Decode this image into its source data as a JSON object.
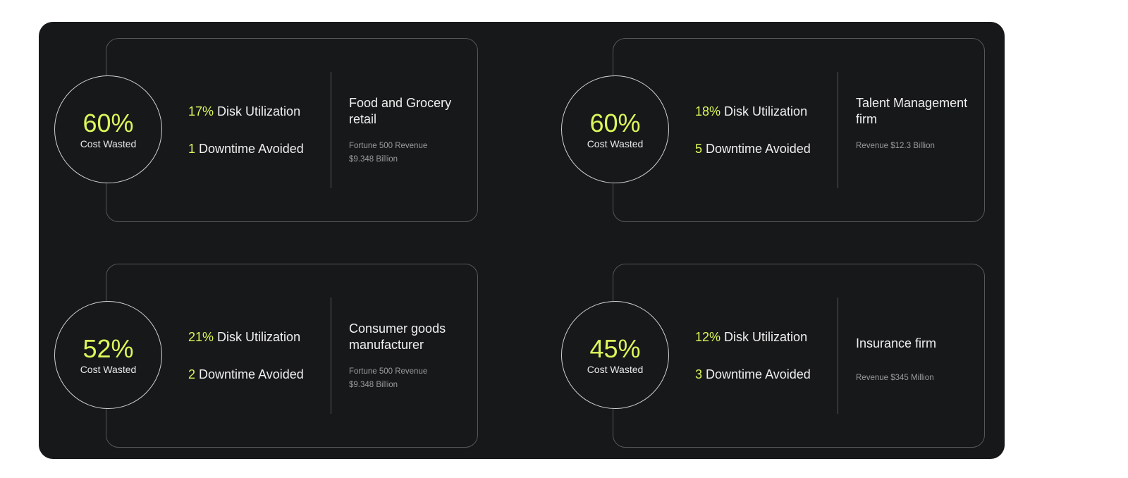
{
  "accent_color": "#dcf75a",
  "cards": [
    {
      "cost_pct": "60%",
      "cost_label": "Cost Wasted",
      "disk_value": "17%",
      "disk_label": "Disk Utilization",
      "downtime_value": "1",
      "downtime_label": "Downtime Avoided",
      "company": "Food and Grocery retail",
      "revenue_line1": "Fortune 500 Revenue",
      "revenue_line2": "$9.348 Billion"
    },
    {
      "cost_pct": "60%",
      "cost_label": "Cost Wasted",
      "disk_value": "18%",
      "disk_label": "Disk Utilization",
      "downtime_value": "5",
      "downtime_label": "Downtime Avoided",
      "company": "Talent Management firm",
      "revenue_line1": "Revenue $12.3 Billion",
      "revenue_line2": ""
    },
    {
      "cost_pct": "52%",
      "cost_label": "Cost Wasted",
      "disk_value": "21%",
      "disk_label": "Disk Utilization",
      "downtime_value": "2",
      "downtime_label": "Downtime Avoided",
      "company": "Consumer goods manufacturer",
      "revenue_line1": "Fortune 500 Revenue",
      "revenue_line2": "$9.348 Billion"
    },
    {
      "cost_pct": "45%",
      "cost_label": "Cost Wasted",
      "disk_value": "12%",
      "disk_label": "Disk Utilization",
      "downtime_value": "3",
      "downtime_label": "Downtime Avoided",
      "company": "Insurance firm",
      "revenue_line1": "Revenue $345 Million",
      "revenue_line2": ""
    }
  ]
}
